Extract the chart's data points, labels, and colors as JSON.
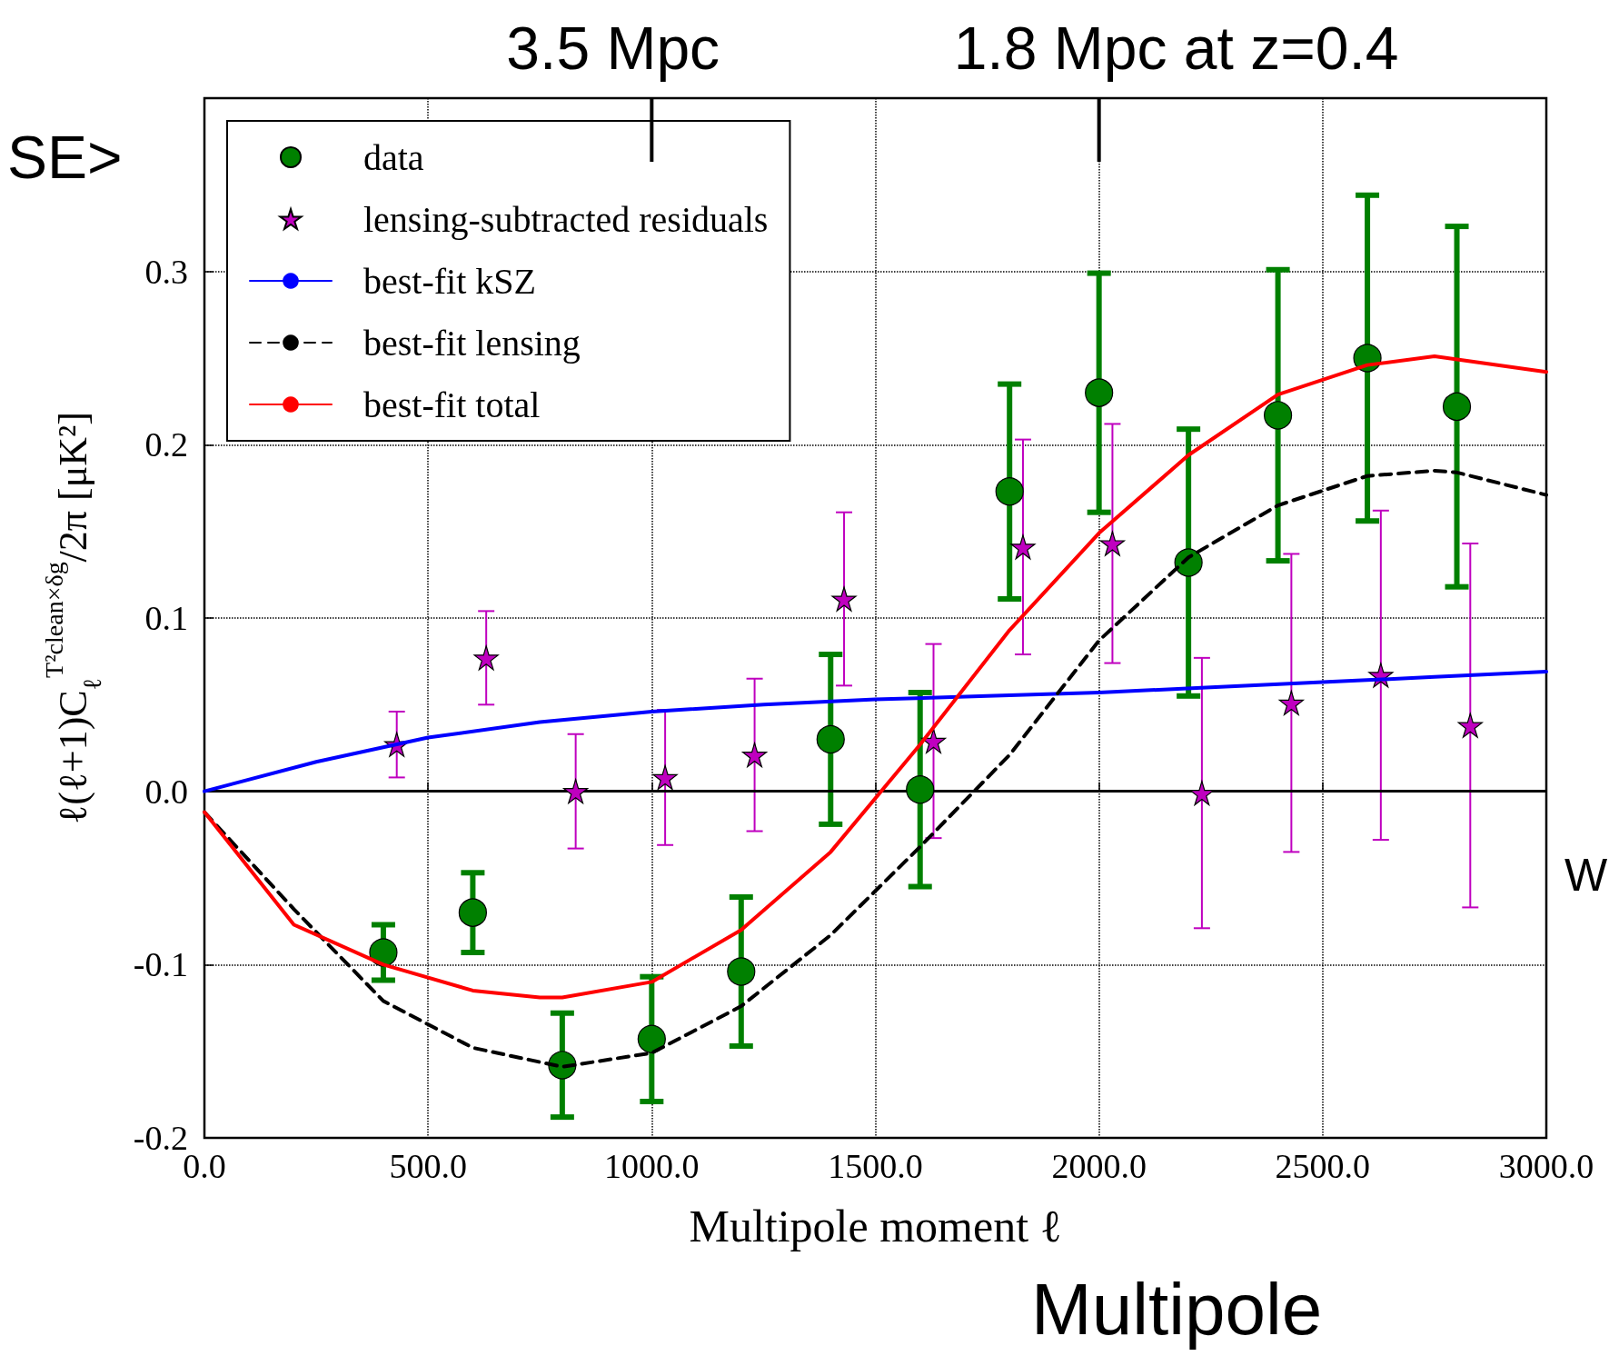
{
  "chart_data": {
    "type": "scatter",
    "xlabel": "Multipole moment ℓ",
    "ylabel": "ℓ(ℓ+1)C$_{ℓ}$$^{T²clean×δg}$/2π [μK²]",
    "annotations": [
      "SE>",
      "W",
      "Multipole",
      "3.5 Mpc",
      "1.8 Mpc at z=0.4"
    ],
    "xlim": [
      0,
      3000
    ],
    "ylim": [
      -0.2,
      0.4
    ],
    "xticks": [
      {
        "value": 0,
        "label": "0.0"
      },
      {
        "value": 500,
        "label": "500.0"
      },
      {
        "value": 1000,
        "label": "1000.0"
      },
      {
        "value": 1500,
        "label": "1500.0"
      },
      {
        "value": 2000,
        "label": "2000.0"
      },
      {
        "value": 2500,
        "label": "2500.0"
      },
      {
        "value": 3000,
        "label": "3000.0"
      }
    ],
    "yticks": [
      {
        "value": -0.2,
        "label": "-0.2"
      },
      {
        "value": -0.1,
        "label": "-0.1"
      },
      {
        "value": 0,
        "label": "0.0"
      },
      {
        "value": 0.1,
        "label": "0.1"
      },
      {
        "value": 0.2,
        "label": "0.2"
      },
      {
        "value": 0.3,
        "label": "0.3"
      }
    ],
    "grid": true,
    "legend": "top left",
    "ref_lines": [
      {
        "axis": "y",
        "value": 0,
        "color": "#000000",
        "line_style": "solid"
      }
    ],
    "series": [
      {
        "name": "data",
        "marker": "circle",
        "color": "#008000",
        "x": [
          400,
          600,
          800,
          1000,
          1200,
          1400,
          1600,
          1800,
          2000,
          2200,
          2400,
          2600,
          2800
        ],
        "values": [
          -0.093,
          -0.07,
          -0.158,
          -0.143,
          -0.104,
          0.03,
          0.001,
          0.173,
          0.23,
          0.132,
          0.217,
          0.25,
          0.222
        ],
        "errors": [
          0.016,
          0.023,
          0.03,
          0.036,
          0.043,
          0.049,
          0.056,
          0.062,
          0.069,
          0.077,
          0.084,
          0.094,
          0.104
        ]
      },
      {
        "name": "lensing-subtracted residuals",
        "marker": "star",
        "color": "#bf00bf",
        "x": [
          430,
          630,
          830,
          1030,
          1230,
          1430,
          1630,
          1830,
          2030,
          2230,
          2430,
          2630,
          2830
        ],
        "values": [
          0.027,
          0.077,
          0.0,
          0.008,
          0.021,
          0.111,
          0.029,
          0.141,
          0.143,
          -0.001,
          0.051,
          0.067,
          0.038
        ],
        "errors": [
          0.019,
          0.027,
          0.033,
          0.039,
          0.044,
          0.05,
          0.056,
          0.062,
          0.069,
          0.078,
          0.086,
          0.095,
          0.105
        ]
      },
      {
        "name": "best-fit kSZ",
        "type": "line",
        "marker": "none",
        "line_style": "solid",
        "color": "#0000ff",
        "x": [
          0,
          250,
          500,
          750,
          1000,
          1250,
          1500,
          1750,
          2000,
          2250,
          2500,
          2750,
          3000
        ],
        "values": [
          0,
          0.017,
          0.031,
          0.04,
          0.046,
          0.05,
          0.053,
          0.055,
          0.057,
          0.06,
          0.063,
          0.066,
          0.069
        ]
      },
      {
        "name": "best-fit lensing",
        "type": "line",
        "marker": "none",
        "line_style": "dashed",
        "color": "#000000",
        "x": [
          0,
          200,
          400,
          600,
          800,
          1000,
          1200,
          1400,
          1600,
          1800,
          2000,
          2200,
          2400,
          2600,
          2750,
          2800,
          3000
        ],
        "values": [
          -0.012,
          -0.068,
          -0.121,
          -0.148,
          -0.159,
          -0.151,
          -0.124,
          -0.083,
          -0.032,
          0.021,
          0.087,
          0.135,
          0.165,
          0.182,
          0.185,
          0.184,
          0.171
        ]
      },
      {
        "name": "best-fit total",
        "type": "line",
        "marker": "none",
        "line_style": "solid",
        "color": "#ff0000",
        "x": [
          0,
          200,
          400,
          600,
          750,
          800,
          1000,
          1200,
          1400,
          1600,
          1800,
          2000,
          2200,
          2400,
          2600,
          2750,
          3000
        ],
        "values": [
          -0.012,
          -0.077,
          -0.1,
          -0.115,
          -0.119,
          -0.119,
          -0.11,
          -0.08,
          -0.035,
          0.027,
          0.093,
          0.149,
          0.194,
          0.229,
          0.246,
          0.251,
          0.242
        ]
      }
    ]
  }
}
